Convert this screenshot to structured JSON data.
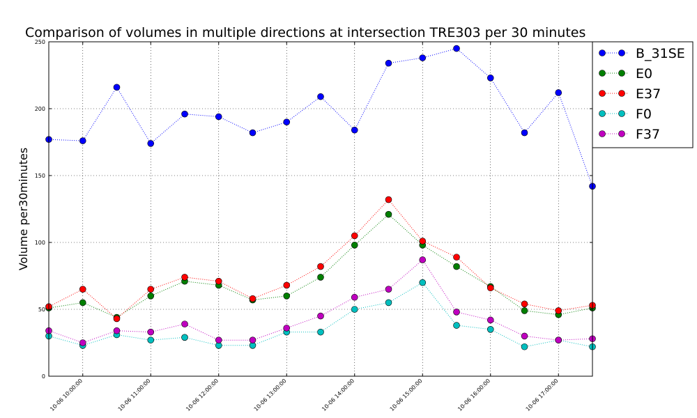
{
  "chart_data": {
    "type": "line",
    "title": "Comparison of volumes in multiple directions at intersection TRE303 per 30 minutes",
    "xlabel": "",
    "ylabel": "Volume per30minutes",
    "ylim": [
      0,
      250
    ],
    "yticks": [
      "0",
      "50",
      "100",
      "150",
      "200",
      "250"
    ],
    "x": [
      "10-06 09:30",
      "10-06 10:00",
      "10-06 10:30",
      "10-06 11:00",
      "10-06 11:30",
      "10-06 12:00",
      "10-06 12:30",
      "10-06 13:00",
      "10-06 13:30",
      "10-06 14:00",
      "10-06 14:30",
      "10-06 15:00",
      "10-06 15:30",
      "10-06 16:00",
      "10-06 16:30",
      "10-06 17:00",
      "10-06 17:30"
    ],
    "xtick_labels": [
      "10-06 10:00:00",
      "10-06 11:00:00",
      "10-06 12:00:00",
      "10-06 13:00:00",
      "10-06 14:00:00",
      "10-06 15:00:00",
      "10-06 16:00:00",
      "10-06 17:00:00"
    ],
    "grid": true,
    "linestyle": "dotted",
    "legend_position": "outside top-right",
    "series": [
      {
        "name": "B_31SE",
        "color": "#0000ff",
        "values": [
          177,
          176,
          216,
          174,
          196,
          194,
          182,
          190,
          209,
          184,
          234,
          238,
          245,
          223,
          182,
          212,
          142
        ]
      },
      {
        "name": "E0",
        "color": "#007f00",
        "values": [
          51,
          55,
          44,
          60,
          71,
          68,
          57,
          60,
          74,
          98,
          121,
          98,
          82,
          67,
          49,
          46,
          51
        ]
      },
      {
        "name": "E37",
        "color": "#ff0000",
        "values": [
          52,
          65,
          43,
          65,
          74,
          71,
          58,
          68,
          82,
          105,
          132,
          101,
          89,
          66,
          54,
          49,
          53
        ]
      },
      {
        "name": "F0",
        "color": "#00bfbf",
        "values": [
          30,
          23,
          31,
          27,
          29,
          23,
          23,
          33,
          33,
          50,
          55,
          70,
          38,
          35,
          22,
          27,
          22
        ]
      },
      {
        "name": "F37",
        "color": "#bf00bf",
        "values": [
          34,
          25,
          34,
          33,
          39,
          27,
          27,
          36,
          45,
          59,
          65,
          87,
          48,
          42,
          30,
          27,
          28
        ]
      }
    ]
  }
}
